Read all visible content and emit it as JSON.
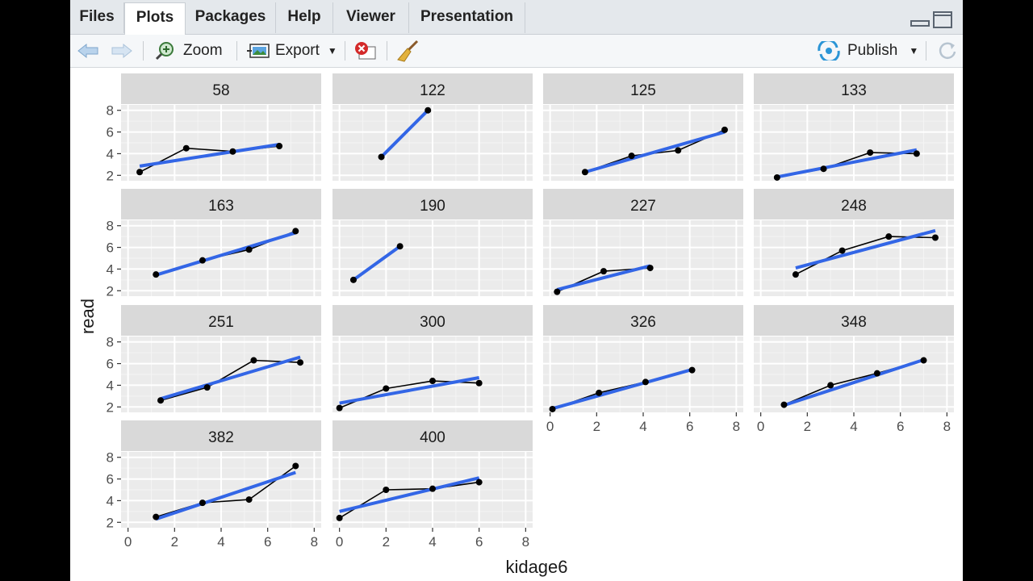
{
  "tabs": [
    {
      "label": "Files",
      "active": false
    },
    {
      "label": "Plots",
      "active": true
    },
    {
      "label": "Packages",
      "active": false
    },
    {
      "label": "Help",
      "active": false
    },
    {
      "label": "Viewer",
      "active": false
    },
    {
      "label": "Presentation",
      "active": false
    }
  ],
  "toolbar": {
    "zoom_label": "Zoom",
    "export_label": "Export",
    "publish_label": "Publish"
  },
  "icons": {
    "back": "arrow-left-icon",
    "forward": "arrow-right-icon",
    "zoom": "zoom-icon",
    "export": "export-image-icon",
    "remove": "remove-plot-icon",
    "clear": "broom-icon",
    "publish": "publish-icon",
    "refresh": "refresh-icon"
  },
  "chart_data": {
    "type": "line",
    "xlabel": "kidage6",
    "ylabel": "read",
    "xlim": [
      -0.3,
      8.3
    ],
    "ylim": [
      1.5,
      8.5
    ],
    "xticks": [
      0,
      2,
      4,
      6,
      8
    ],
    "yticks": [
      2,
      4,
      6,
      8
    ],
    "facet_rows": 4,
    "facet_cols": 4,
    "observed_line_color": "#000000",
    "fit_line_color": "#3366E6",
    "panel_bg": "#EBEBEB",
    "strip_bg": "#D9D9D9",
    "facets": [
      {
        "label": "58",
        "x": [
          0.5,
          2.5,
          4.5,
          6.5
        ],
        "y": [
          2.3,
          4.5,
          4.2,
          4.7
        ],
        "fit": [
          [
            0.5,
            2.85
          ],
          [
            6.5,
            4.85
          ]
        ]
      },
      {
        "label": "122",
        "x": [
          1.8,
          3.8
        ],
        "y": [
          3.7,
          8.0
        ],
        "fit": [
          [
            1.8,
            3.7
          ],
          [
            3.8,
            8.0
          ]
        ]
      },
      {
        "label": "125",
        "x": [
          1.5,
          3.5,
          5.5,
          7.5
        ],
        "y": [
          2.3,
          3.8,
          4.3,
          6.2
        ],
        "fit": [
          [
            1.5,
            2.3
          ],
          [
            7.5,
            6.0
          ]
        ]
      },
      {
        "label": "133",
        "x": [
          0.7,
          2.7,
          4.7,
          6.7
        ],
        "y": [
          1.8,
          2.6,
          4.1,
          4.0
        ],
        "fit": [
          [
            0.7,
            1.85
          ],
          [
            6.7,
            4.35
          ]
        ]
      },
      {
        "label": "163",
        "x": [
          1.2,
          3.2,
          5.2,
          7.2
        ],
        "y": [
          3.5,
          4.8,
          5.8,
          7.5
        ],
        "fit": [
          [
            1.2,
            3.45
          ],
          [
            7.2,
            7.35
          ]
        ]
      },
      {
        "label": "190",
        "x": [
          0.6,
          2.6
        ],
        "y": [
          3.0,
          6.1
        ],
        "fit": [
          [
            0.6,
            3.0
          ],
          [
            2.6,
            6.1
          ]
        ]
      },
      {
        "label": "227",
        "x": [
          0.3,
          2.3,
          4.3
        ],
        "y": [
          1.9,
          3.8,
          4.1
        ],
        "fit": [
          [
            0.3,
            2.1
          ],
          [
            4.3,
            4.3
          ]
        ]
      },
      {
        "label": "248",
        "x": [
          1.5,
          3.5,
          5.5,
          7.5
        ],
        "y": [
          3.5,
          5.7,
          7.0,
          6.9
        ],
        "fit": [
          [
            1.5,
            4.1
          ],
          [
            7.5,
            7.55
          ]
        ]
      },
      {
        "label": "251",
        "x": [
          1.4,
          3.4,
          5.4,
          7.4
        ],
        "y": [
          2.6,
          3.8,
          6.3,
          6.1
        ],
        "fit": [
          [
            1.4,
            2.75
          ],
          [
            7.4,
            6.6
          ]
        ]
      },
      {
        "label": "300",
        "x": [
          0.0,
          2.0,
          4.0,
          6.0
        ],
        "y": [
          1.9,
          3.7,
          4.4,
          4.2
        ],
        "fit": [
          [
            0.0,
            2.35
          ],
          [
            6.0,
            4.7
          ]
        ]
      },
      {
        "label": "326",
        "x": [
          0.1,
          2.1,
          4.1,
          6.1
        ],
        "y": [
          1.8,
          3.3,
          4.3,
          5.4
        ],
        "fit": [
          [
            0.1,
            1.85
          ],
          [
            6.1,
            5.45
          ]
        ]
      },
      {
        "label": "348",
        "x": [
          1.0,
          3.0,
          5.0,
          7.0
        ],
        "y": [
          2.2,
          4.0,
          5.1,
          6.3
        ],
        "fit": [
          [
            1.0,
            2.15
          ],
          [
            7.0,
            6.35
          ]
        ]
      },
      {
        "label": "382",
        "x": [
          1.2,
          3.2,
          5.2,
          7.2
        ],
        "y": [
          2.5,
          3.8,
          4.1,
          7.2
        ],
        "fit": [
          [
            1.2,
            2.3
          ],
          [
            7.2,
            6.6
          ]
        ]
      },
      {
        "label": "400",
        "x": [
          0.0,
          2.0,
          4.0,
          6.0
        ],
        "y": [
          2.4,
          5.0,
          5.1,
          5.7
        ],
        "fit": [
          [
            0.0,
            3.0
          ],
          [
            6.0,
            6.1
          ]
        ]
      }
    ]
  }
}
